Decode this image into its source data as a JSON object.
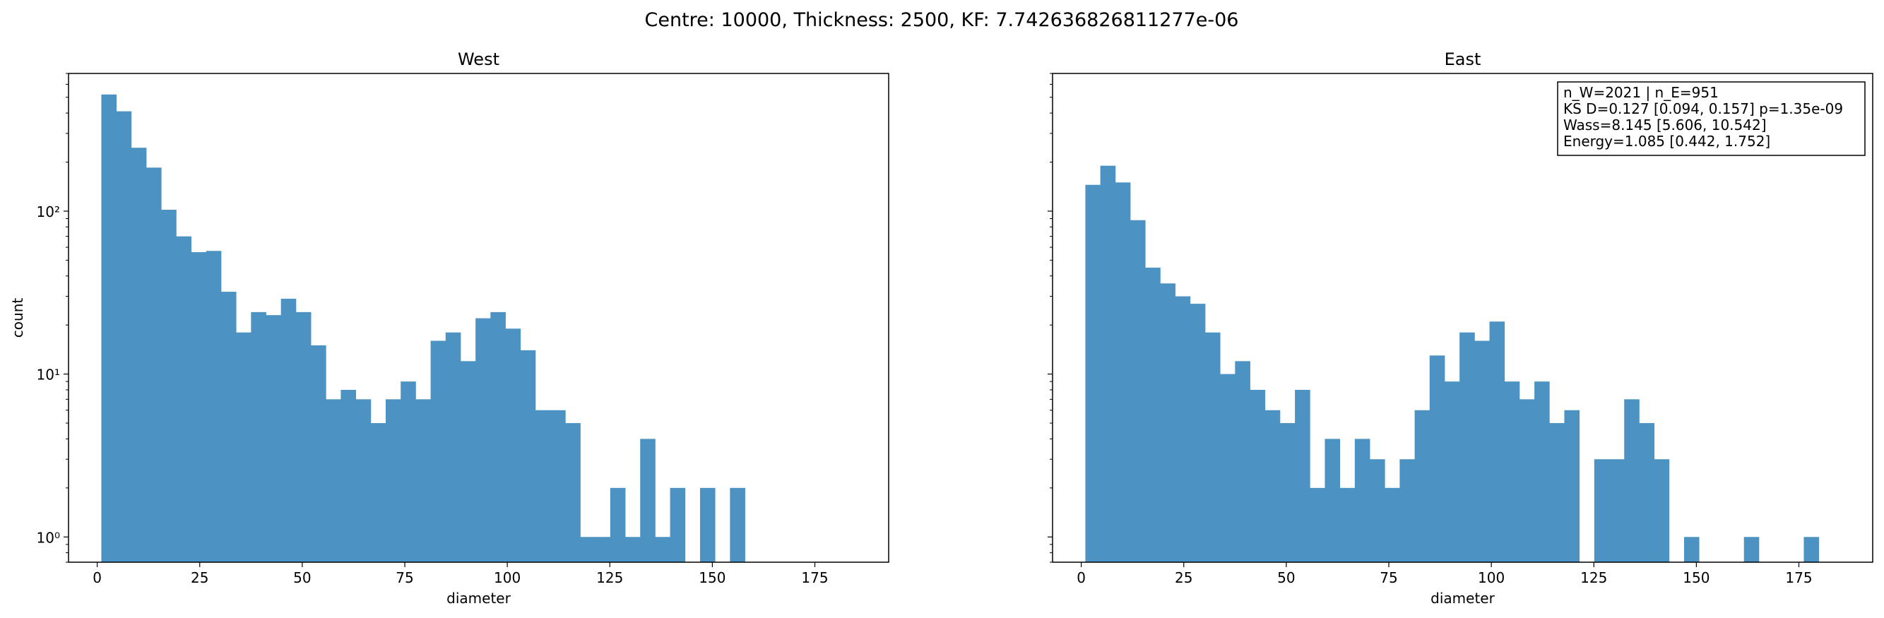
{
  "figure_title": "Centre: 10000, Thickness: 2500, KF: 7.742636826811277e-06",
  "annotation_lines": [
    "n_W=2021 | n_E=951",
    "KS D=0.127 [0.094, 0.157]  p=1.35e-09",
    "Wass=8.145 [5.606, 10.542]",
    "Energy=1.085 [0.442, 1.752]"
  ],
  "colors": {
    "bar": "#4c93c3"
  },
  "chart_data": [
    {
      "type": "bar",
      "title": "West",
      "xlabel": "diameter",
      "ylabel": "count",
      "yscale": "log",
      "xlim": [
        -7,
        193
      ],
      "ylim": [
        0.7,
        700
      ],
      "xticks": [
        0,
        25,
        50,
        75,
        100,
        125,
        150,
        175
      ],
      "yticks": [
        {
          "value": 1,
          "label": "10⁰"
        },
        {
          "value": 10,
          "label": "10¹"
        },
        {
          "value": 100,
          "label": "10²"
        }
      ],
      "bin_width": 3.65,
      "bin_start": 1.0,
      "counts": [
        520,
        410,
        245,
        185,
        102,
        70,
        56,
        57,
        32,
        18,
        24,
        23,
        29,
        24,
        15,
        7,
        8,
        7,
        5,
        7,
        9,
        7,
        16,
        18,
        12,
        22,
        24,
        19,
        14,
        6,
        6,
        5,
        1,
        1,
        2,
        1,
        4,
        1,
        2,
        0,
        2,
        0,
        2,
        0,
        0,
        0,
        0,
        0,
        0,
        0,
        0
      ]
    },
    {
      "type": "bar",
      "title": "East",
      "xlabel": "diameter",
      "ylabel": "",
      "yscale": "log",
      "xlim": [
        -7,
        193
      ],
      "ylim": [
        0.7,
        700
      ],
      "xticks": [
        0,
        25,
        50,
        75,
        100,
        125,
        150,
        175
      ],
      "yticks": [
        {
          "value": 1,
          "label": ""
        },
        {
          "value": 10,
          "label": ""
        },
        {
          "value": 100,
          "label": ""
        }
      ],
      "bin_width": 3.65,
      "bin_start": 1.0,
      "counts": [
        145,
        190,
        150,
        88,
        45,
        36,
        30,
        27,
        18,
        10,
        12,
        8,
        6,
        5,
        8,
        2,
        4,
        2,
        4,
        3,
        2,
        3,
        6,
        13,
        9,
        18,
        16,
        21,
        9,
        7,
        9,
        5,
        6,
        0,
        3,
        3,
        7,
        5,
        3,
        0,
        1,
        0,
        0,
        0,
        1,
        0,
        0,
        0,
        1,
        0,
        0
      ]
    }
  ]
}
